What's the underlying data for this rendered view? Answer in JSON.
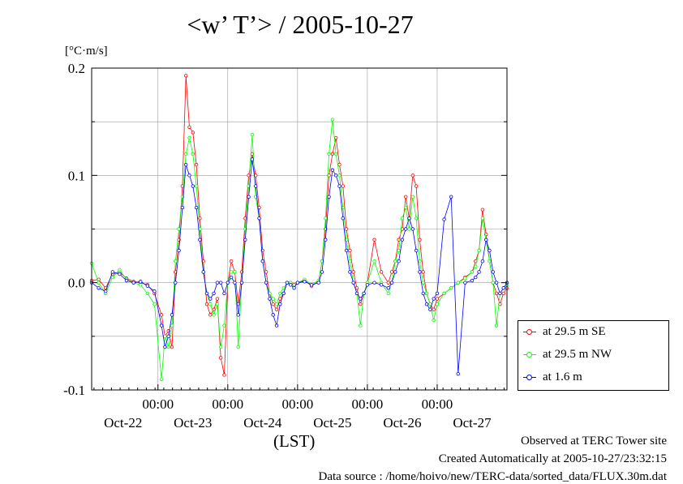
{
  "title": "<w’ T’> / 2005-10-27",
  "unit_label": "[°C·m/s]",
  "xlabel": "(LST)",
  "footer": {
    "line1": "Observed at TERC Tower site",
    "line2": "Created Automatically at 2005-10-27/23:32:15",
    "line3": "Data source : /home/hoivo/new/TERC-data/sorted_data/FLUX.30m.dat"
  },
  "chart_data": {
    "type": "line",
    "title": "<w’ T’> / 2005-10-27",
    "ylabel": "[°C·m/s]",
    "xlabel": "(LST)",
    "xlim": [
      -0.95,
      5.0
    ],
    "ylim": [
      -0.1,
      0.2
    ],
    "yticks": [
      -0.1,
      0.0,
      0.1,
      0.2
    ],
    "ytick_labels": [
      "-0.1",
      "0.0",
      "0.1",
      "0.2"
    ],
    "xticks_time": [
      0,
      1,
      2,
      3,
      4
    ],
    "xtick_time_labels": [
      "00:00",
      "00:00",
      "00:00",
      "00:00",
      "00:00"
    ],
    "xtick_date_positions": [
      -0.5,
      0.5,
      1.5,
      2.5,
      3.5,
      4.5
    ],
    "xtick_date_labels": [
      "Oct-22",
      "Oct-23",
      "Oct-24",
      "Oct-25",
      "Oct-26",
      "Oct-27"
    ],
    "grid": true,
    "legend_position": "right",
    "series": [
      {
        "name": "at 29.5 m SE",
        "color": "#ff0000",
        "x": [
          -0.95,
          -0.85,
          -0.75,
          -0.65,
          -0.55,
          -0.45,
          -0.35,
          -0.25,
          -0.15,
          -0.05,
          0.05,
          0.1,
          0.15,
          0.2,
          0.25,
          0.3,
          0.35,
          0.4,
          0.45,
          0.5,
          0.55,
          0.6,
          0.65,
          0.7,
          0.75,
          0.8,
          0.85,
          0.9,
          0.95,
          1.0,
          1.05,
          1.1,
          1.15,
          1.2,
          1.25,
          1.3,
          1.35,
          1.4,
          1.45,
          1.5,
          1.55,
          1.6,
          1.65,
          1.7,
          1.75,
          1.8,
          1.85,
          1.9,
          1.95,
          2.0,
          2.1,
          2.2,
          2.3,
          2.35,
          2.4,
          2.45,
          2.5,
          2.55,
          2.6,
          2.65,
          2.7,
          2.75,
          2.8,
          2.85,
          2.9,
          2.95,
          3.0,
          3.1,
          3.2,
          3.3,
          3.35,
          3.4,
          3.45,
          3.5,
          3.55,
          3.6,
          3.65,
          3.7,
          3.75,
          3.8,
          3.85,
          3.9,
          3.95,
          4.0,
          4.1,
          4.2,
          4.3,
          4.4,
          4.5,
          4.55,
          4.6,
          4.65,
          4.7,
          4.75,
          4.8,
          4.85,
          4.9,
          4.95,
          5.0
        ],
        "values": [
          0.002,
          0.003,
          -0.005,
          0.008,
          0.01,
          0.004,
          0.001,
          0.0,
          -0.002,
          -0.01,
          -0.03,
          -0.05,
          -0.045,
          -0.06,
          0.01,
          0.04,
          0.09,
          0.193,
          0.145,
          0.14,
          0.11,
          0.06,
          0.02,
          -0.02,
          -0.03,
          -0.025,
          -0.015,
          -0.07,
          -0.086,
          0.0,
          0.02,
          0.01,
          -0.02,
          0.01,
          0.06,
          0.1,
          0.12,
          0.1,
          0.07,
          0.03,
          0.01,
          -0.01,
          -0.02,
          -0.025,
          -0.015,
          -0.01,
          0.0,
          0.0,
          -0.002,
          0.0,
          0.002,
          -0.003,
          0.001,
          0.02,
          0.05,
          0.1,
          0.12,
          0.135,
          0.11,
          0.09,
          0.05,
          0.03,
          0.01,
          -0.005,
          -0.02,
          -0.01,
          0.0,
          0.04,
          0.01,
          0.0,
          0.01,
          0.02,
          0.04,
          0.05,
          0.08,
          0.06,
          0.1,
          0.09,
          0.04,
          0.01,
          -0.01,
          -0.02,
          -0.025,
          -0.015,
          -0.01,
          -0.005,
          0.0,
          0.005,
          0.01,
          0.02,
          0.03,
          0.068,
          0.045,
          0.02,
          0.0,
          -0.01,
          -0.02,
          -0.01,
          -0.005
        ]
      },
      {
        "name": "at 29.5 m NW",
        "color": "#00ff00",
        "x": [
          -0.95,
          -0.85,
          -0.75,
          -0.65,
          -0.55,
          -0.45,
          -0.35,
          -0.25,
          -0.15,
          -0.05,
          0.05,
          0.1,
          0.15,
          0.2,
          0.25,
          0.3,
          0.35,
          0.4,
          0.45,
          0.5,
          0.55,
          0.6,
          0.65,
          0.7,
          0.75,
          0.8,
          0.85,
          0.9,
          0.95,
          1.0,
          1.05,
          1.1,
          1.15,
          1.2,
          1.25,
          1.3,
          1.35,
          1.4,
          1.45,
          1.5,
          1.55,
          1.6,
          1.65,
          1.7,
          1.75,
          1.8,
          1.85,
          1.9,
          1.95,
          2.0,
          2.1,
          2.2,
          2.3,
          2.35,
          2.4,
          2.45,
          2.5,
          2.55,
          2.6,
          2.65,
          2.7,
          2.75,
          2.8,
          2.85,
          2.9,
          2.95,
          3.0,
          3.1,
          3.2,
          3.3,
          3.35,
          3.4,
          3.45,
          3.5,
          3.55,
          3.6,
          3.65,
          3.7,
          3.75,
          3.8,
          3.85,
          3.9,
          3.95,
          4.0,
          4.1,
          4.2,
          4.3,
          4.4,
          4.5,
          4.55,
          4.6,
          4.65,
          4.7,
          4.75,
          4.8,
          4.85,
          4.9,
          4.95,
          5.0
        ],
        "values": [
          0.018,
          0.0,
          -0.01,
          0.005,
          0.012,
          0.003,
          0.0,
          -0.002,
          -0.01,
          -0.02,
          -0.09,
          -0.05,
          -0.06,
          -0.04,
          0.02,
          0.05,
          0.08,
          0.12,
          0.135,
          0.12,
          0.09,
          0.05,
          0.01,
          -0.01,
          -0.02,
          -0.03,
          -0.02,
          -0.06,
          -0.04,
          0.0,
          0.01,
          0.01,
          -0.06,
          0.0,
          0.05,
          0.09,
          0.138,
          0.08,
          0.06,
          0.02,
          0.0,
          -0.01,
          -0.015,
          -0.02,
          -0.01,
          -0.005,
          0.0,
          0.0,
          -0.004,
          0.0,
          0.003,
          -0.002,
          0.002,
          0.02,
          0.06,
          0.12,
          0.152,
          0.12,
          0.1,
          0.07,
          0.04,
          0.02,
          0.0,
          -0.01,
          -0.04,
          -0.01,
          0.0,
          0.02,
          0.0,
          -0.01,
          0.0,
          0.02,
          0.03,
          0.06,
          0.07,
          0.05,
          0.08,
          0.06,
          0.02,
          0.0,
          -0.01,
          -0.02,
          -0.035,
          -0.02,
          -0.01,
          -0.005,
          0.0,
          0.004,
          0.01,
          0.015,
          0.03,
          0.06,
          0.04,
          0.02,
          0.0,
          -0.04,
          -0.01,
          -0.005,
          -0.002
        ]
      },
      {
        "name": "at 1.6 m",
        "color": "#0000ff",
        "x": [
          -0.95,
          -0.85,
          -0.75,
          -0.65,
          -0.55,
          -0.45,
          -0.35,
          -0.25,
          -0.15,
          -0.05,
          0.05,
          0.1,
          0.15,
          0.2,
          0.25,
          0.3,
          0.35,
          0.4,
          0.45,
          0.5,
          0.55,
          0.6,
          0.65,
          0.7,
          0.75,
          0.8,
          0.85,
          0.9,
          0.95,
          1.0,
          1.05,
          1.1,
          1.15,
          1.2,
          1.25,
          1.3,
          1.35,
          1.4,
          1.45,
          1.5,
          1.55,
          1.6,
          1.65,
          1.7,
          1.75,
          1.8,
          1.85,
          1.9,
          1.95,
          2.0,
          2.1,
          2.2,
          2.3,
          2.35,
          2.4,
          2.45,
          2.5,
          2.55,
          2.6,
          2.65,
          2.7,
          2.75,
          2.8,
          2.85,
          2.9,
          2.95,
          3.0,
          3.1,
          3.2,
          3.3,
          3.35,
          3.4,
          3.45,
          3.5,
          3.55,
          3.6,
          3.65,
          3.7,
          3.75,
          3.8,
          3.85,
          3.9,
          3.95,
          4.0,
          4.1,
          4.2,
          4.3,
          4.4,
          4.5,
          4.55,
          4.6,
          4.65,
          4.7,
          4.75,
          4.8,
          4.85,
          4.9,
          4.95,
          5.0
        ],
        "values": [
          0.0,
          -0.005,
          -0.008,
          0.01,
          0.008,
          0.002,
          0.0,
          0.001,
          -0.003,
          -0.008,
          -0.04,
          -0.06,
          -0.05,
          -0.03,
          0.0,
          0.03,
          0.07,
          0.11,
          0.1,
          0.09,
          0.07,
          0.04,
          0.01,
          -0.01,
          -0.015,
          -0.01,
          0.0,
          0.0,
          -0.01,
          0.0,
          0.005,
          0.0,
          -0.03,
          0.0,
          0.04,
          0.08,
          0.115,
          0.09,
          0.06,
          0.02,
          0.0,
          -0.015,
          -0.03,
          -0.04,
          -0.02,
          -0.01,
          0.0,
          -0.002,
          -0.005,
          0.0,
          0.001,
          -0.002,
          0.0,
          0.01,
          0.04,
          0.08,
          0.105,
          0.1,
          0.09,
          0.06,
          0.03,
          0.01,
          0.0,
          -0.01,
          -0.015,
          -0.01,
          -0.002,
          0.0,
          -0.002,
          -0.005,
          0.0,
          0.01,
          0.02,
          0.04,
          0.05,
          0.06,
          0.05,
          0.03,
          0.01,
          -0.01,
          -0.02,
          -0.025,
          -0.015,
          -0.01,
          0.059,
          0.08,
          -0.085,
          0.0,
          0.002,
          0.005,
          0.01,
          0.02,
          0.04,
          0.03,
          0.01,
          0.0,
          -0.01,
          -0.005,
          0.0
        ]
      }
    ]
  }
}
